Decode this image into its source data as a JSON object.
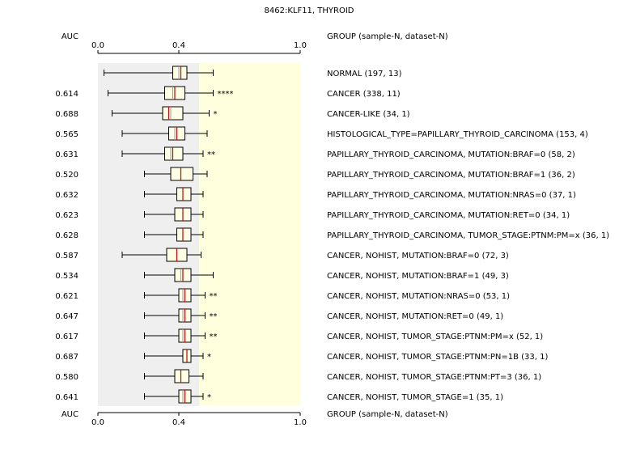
{
  "chart_data": {
    "type": "boxplot",
    "title": "8462:KLF11, THYROID",
    "auc_header": "AUC",
    "group_header": "GROUP (sample-N, dataset-N)",
    "xlim": [
      0.0,
      1.0
    ],
    "tick_labels": [
      "0.0",
      "0.4",
      "1.0"
    ],
    "tick_values": [
      0.0,
      0.4,
      1.0
    ],
    "shaded_region_boundary": 0.5,
    "colors": {
      "left_background": "#efefef",
      "right_background": "#ffffdd",
      "box_fill": "#ffffe6",
      "median": "#cc0000",
      "mean": "#9999aa",
      "blue_text": "#1a1aaa",
      "red_text": "#8b2222",
      "black_text": "#000000"
    },
    "rows": [
      {
        "group": "NORMAL (197, 13)",
        "auc": "",
        "color": "black",
        "stars": "",
        "wmin": 0.03,
        "q1": 0.37,
        "med": 0.41,
        "q3": 0.44,
        "wmax": 0.57,
        "mean": 0.4
      },
      {
        "group": "CANCER (338, 11)",
        "auc": "0.614",
        "color": "blue",
        "stars": "****",
        "wmin": 0.05,
        "q1": 0.33,
        "med": 0.38,
        "q3": 0.43,
        "wmax": 0.57,
        "mean": 0.37
      },
      {
        "group": "CANCER-LIKE (34, 1)",
        "auc": "0.688",
        "color": "blue",
        "stars": "*",
        "wmin": 0.07,
        "q1": 0.32,
        "med": 0.35,
        "q3": 0.42,
        "wmax": 0.55,
        "mean": 0.36
      },
      {
        "group": "HISTOLOGICAL_TYPE=PAPILLARY_THYROID_CARCINOMA (153, 4)",
        "auc": "0.565",
        "color": "black",
        "stars": "",
        "wmin": 0.12,
        "q1": 0.35,
        "med": 0.39,
        "q3": 0.43,
        "wmax": 0.54,
        "mean": 0.38
      },
      {
        "group": "PAPILLARY_THYROID_CARCINOMA, MUTATION:BRAF=0 (58, 2)",
        "auc": "0.631",
        "color": "blue",
        "stars": "**",
        "wmin": 0.12,
        "q1": 0.33,
        "med": 0.37,
        "q3": 0.42,
        "wmax": 0.52,
        "mean": 0.36
      },
      {
        "group": "PAPILLARY_THYROID_CARCINOMA, MUTATION:BRAF=1 (36, 2)",
        "auc": "0.520",
        "color": "black",
        "stars": "",
        "wmin": 0.23,
        "q1": 0.36,
        "med": 0.41,
        "q3": 0.47,
        "wmax": 0.54,
        "mean": 0.41
      },
      {
        "group": "PAPILLARY_THYROID_CARCINOMA, MUTATION:NRAS=0 (37, 1)",
        "auc": "0.632",
        "color": "black",
        "stars": "",
        "wmin": 0.23,
        "q1": 0.39,
        "med": 0.42,
        "q3": 0.46,
        "wmax": 0.52,
        "mean": 0.42
      },
      {
        "group": "PAPILLARY_THYROID_CARCINOMA, MUTATION:RET=0 (34, 1)",
        "auc": "0.623",
        "color": "black",
        "stars": "",
        "wmin": 0.23,
        "q1": 0.38,
        "med": 0.42,
        "q3": 0.46,
        "wmax": 0.52,
        "mean": 0.42
      },
      {
        "group": "PAPILLARY_THYROID_CARCINOMA, TUMOR_STAGE:PTNM:PM=x (36, 1)",
        "auc": "0.628",
        "color": "black",
        "stars": "",
        "wmin": 0.23,
        "q1": 0.39,
        "med": 0.42,
        "q3": 0.46,
        "wmax": 0.52,
        "mean": 0.42
      },
      {
        "group": "CANCER, NOHIST, MUTATION:BRAF=0 (72, 3)",
        "auc": "0.587",
        "color": "black",
        "stars": "",
        "wmin": 0.12,
        "q1": 0.34,
        "med": 0.39,
        "q3": 0.44,
        "wmax": 0.51,
        "mean": 0.39
      },
      {
        "group": "CANCER, NOHIST, MUTATION:BRAF=1 (49, 3)",
        "auc": "0.534",
        "color": "black",
        "stars": "",
        "wmin": 0.23,
        "q1": 0.38,
        "med": 0.42,
        "q3": 0.46,
        "wmax": 0.57,
        "mean": 0.41
      },
      {
        "group": "CANCER, NOHIST, MUTATION:NRAS=0 (53, 1)",
        "auc": "0.621",
        "color": "red",
        "stars": "**",
        "wmin": 0.23,
        "q1": 0.4,
        "med": 0.43,
        "q3": 0.46,
        "wmax": 0.53,
        "mean": 0.42
      },
      {
        "group": "CANCER, NOHIST, MUTATION:RET=0 (49, 1)",
        "auc": "0.647",
        "color": "red",
        "stars": "**",
        "wmin": 0.23,
        "q1": 0.4,
        "med": 0.43,
        "q3": 0.46,
        "wmax": 0.53,
        "mean": 0.42
      },
      {
        "group": "CANCER, NOHIST, TUMOR_STAGE:PTNM:PM=x (52, 1)",
        "auc": "0.617",
        "color": "red",
        "stars": "**",
        "wmin": 0.23,
        "q1": 0.4,
        "med": 0.43,
        "q3": 0.46,
        "wmax": 0.53,
        "mean": 0.42
      },
      {
        "group": "CANCER, NOHIST, TUMOR_STAGE:PTNM:PN=1B (33, 1)",
        "auc": "0.687",
        "color": "red",
        "stars": "*",
        "wmin": 0.23,
        "q1": 0.42,
        "med": 0.44,
        "q3": 0.46,
        "wmax": 0.52,
        "mean": 0.44
      },
      {
        "group": "CANCER, NOHIST, TUMOR_STAGE:PTNM:PT=3 (36, 1)",
        "auc": "0.580",
        "color": "black",
        "stars": "",
        "wmin": 0.23,
        "q1": 0.38,
        "med": 0.41,
        "q3": 0.45,
        "wmax": 0.52,
        "mean": 0.41
      },
      {
        "group": "CANCER, NOHIST, TUMOR_STAGE=1 (35, 1)",
        "auc": "0.641",
        "color": "red",
        "stars": "*",
        "wmin": 0.23,
        "q1": 0.4,
        "med": 0.43,
        "q3": 0.46,
        "wmax": 0.52,
        "mean": 0.42
      }
    ]
  }
}
